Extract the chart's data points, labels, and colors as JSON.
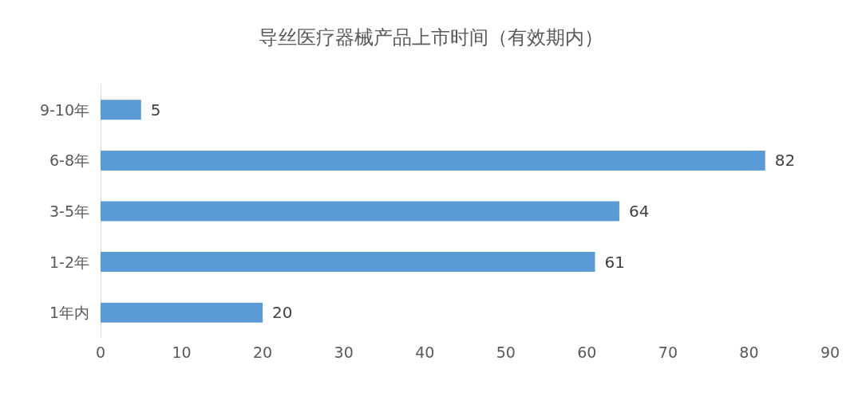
{
  "chart_data": {
    "type": "bar",
    "orientation": "horizontal",
    "title": "导丝医疗器械产品上市时间（有效期内）",
    "categories": [
      "9-10年",
      "6-8年",
      "3-5年",
      "1-2年",
      "1年内"
    ],
    "values": [
      5,
      82,
      64,
      61,
      20
    ],
    "color": "#5b9bd5",
    "xlim": [
      0,
      90
    ],
    "xticks": [
      0,
      10,
      20,
      30,
      40,
      50,
      60,
      70,
      80,
      90
    ],
    "grid": false,
    "data_labels": true
  }
}
